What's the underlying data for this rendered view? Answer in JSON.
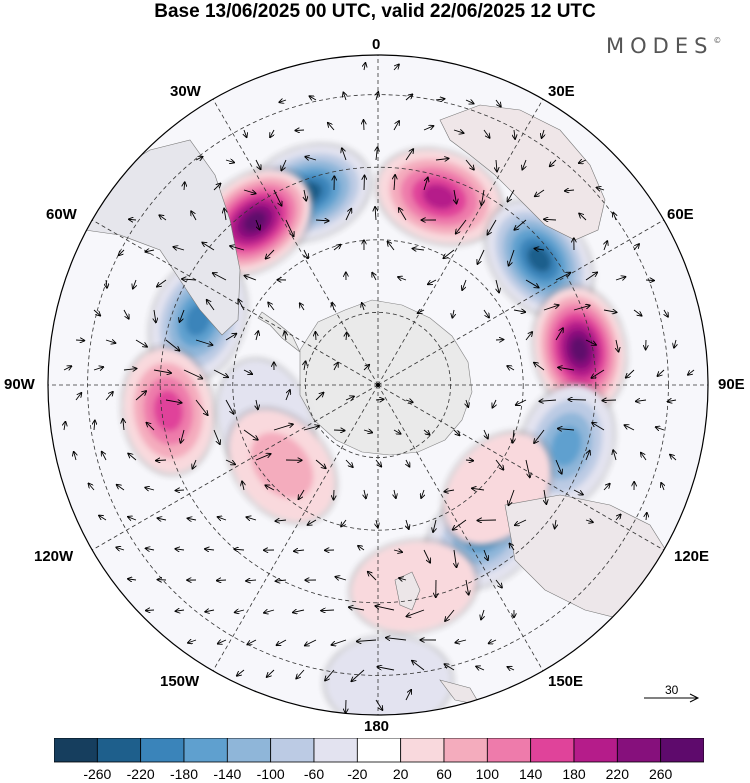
{
  "title": "Base 13/06/2025 00 UTC, valid 22/06/2025 12 UTC",
  "brand": "MODES",
  "brand_mark": "©",
  "longitude_labels": {
    "top": "0",
    "lon_30e": "30E",
    "lon_60e": "60E",
    "lon_90e": "90E",
    "lon_120e": "120E",
    "lon_150e": "150E",
    "bottom": "180",
    "lon_150w": "150W",
    "lon_120w": "120W",
    "lon_90w": "90W",
    "lon_60w": "60W",
    "lon_30w": "30W"
  },
  "reference_vector": {
    "value": "30"
  },
  "colorbar": {
    "labels": [
      "-260",
      "-220",
      "-180",
      "-140",
      "-100",
      "-60",
      "-20",
      "20",
      "60",
      "100",
      "140",
      "180",
      "220",
      "260"
    ],
    "colors": [
      "#163e5e",
      "#1e5f8c",
      "#3a84ba",
      "#5fa0cf",
      "#8fb6d9",
      "#bccbe4",
      "#e3e3f0",
      "#ffffff",
      "#f9d9dd",
      "#f4acbd",
      "#ee7bab",
      "#e0439a",
      "#b51c8a",
      "#86107c",
      "#5e0a6c"
    ]
  },
  "map": {
    "projection": "south-polar-stereographic",
    "land_color": "#e8e8e8",
    "anomalies": [
      {
        "lon": -20,
        "r": 0.62,
        "sign": -1,
        "level": 13
      },
      {
        "lon": 18,
        "r": 0.6,
        "sign": 1,
        "level": 12
      },
      {
        "lon": 52,
        "r": 0.62,
        "sign": -1,
        "level": 13
      },
      {
        "lon": 80,
        "r": 0.62,
        "sign": 1,
        "level": 14
      },
      {
        "lon": 108,
        "r": 0.6,
        "sign": -1,
        "level": 11
      },
      {
        "lon": 145,
        "r": 0.56,
        "sign": -1,
        "level": 11
      },
      {
        "lon": 131,
        "r": 0.48,
        "sign": 1,
        "level": 8
      },
      {
        "lon": -37,
        "r": 0.62,
        "sign": 1,
        "level": 14
      },
      {
        "lon": -70,
        "r": 0.58,
        "sign": -1,
        "level": 12
      },
      {
        "lon": -97,
        "r": 0.64,
        "sign": 1,
        "level": 11
      },
      {
        "lon": -108,
        "r": 0.36,
        "sign": -1,
        "level": 8
      },
      {
        "lon": -130,
        "r": 0.38,
        "sign": 1,
        "level": 9
      },
      {
        "lon": 170,
        "r": 0.62,
        "sign": 1,
        "level": 7
      },
      {
        "lon": 178,
        "r": 0.9,
        "sign": -1,
        "level": 8
      }
    ]
  }
}
